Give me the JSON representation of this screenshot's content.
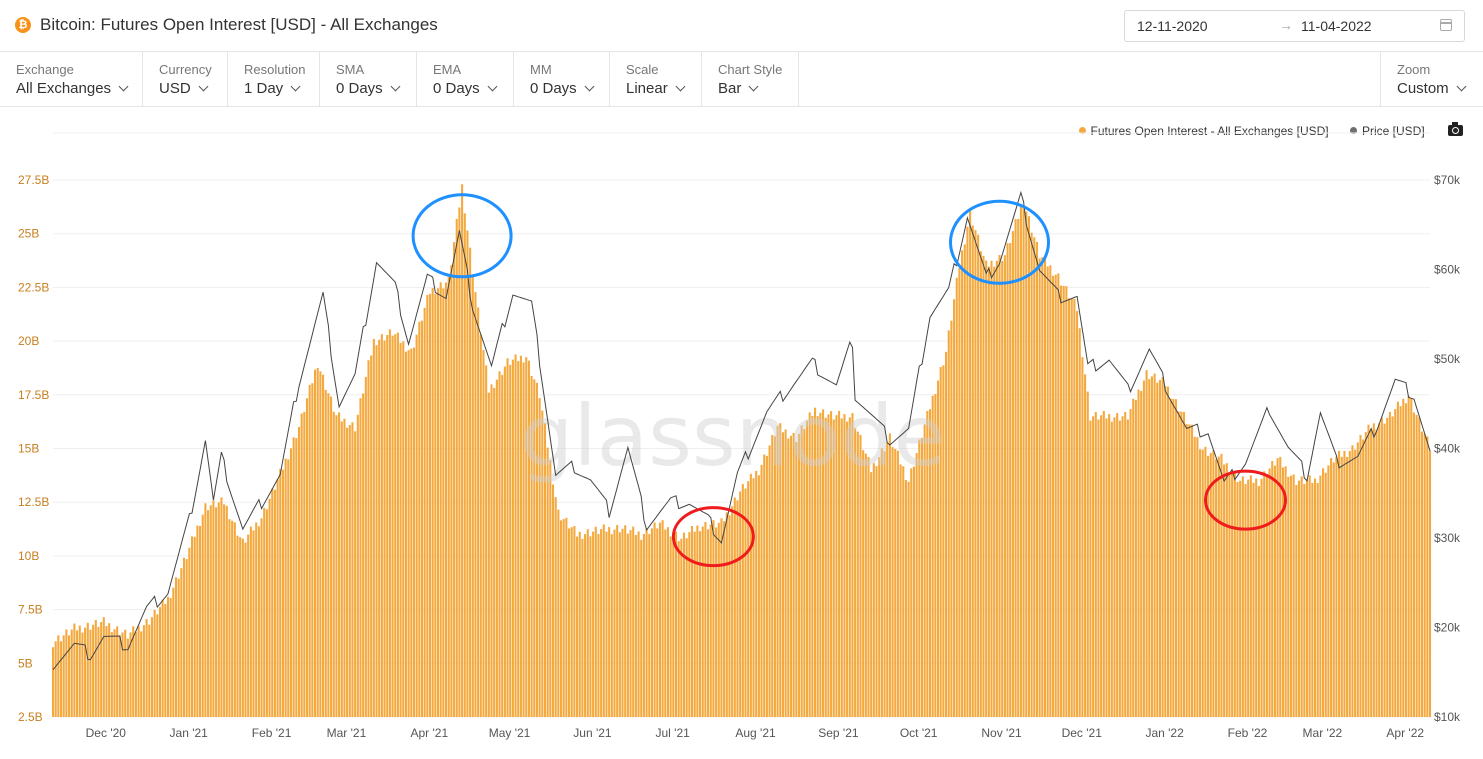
{
  "header": {
    "title": "Bitcoin: Futures Open Interest [USD] - All Exchanges",
    "coin_icon": "bitcoin-icon",
    "coin_glyph": "₿",
    "date_start": "12-11-2020",
    "date_arrow": "→",
    "date_end": "11-04-2022"
  },
  "toolbar": {
    "controls": [
      {
        "label": "Exchange",
        "value": "All Exchanges"
      },
      {
        "label": "Currency",
        "value": "USD"
      },
      {
        "label": "Resolution",
        "value": "1 Day"
      },
      {
        "label": "SMA",
        "value": "0 Days"
      },
      {
        "label": "EMA",
        "value": "0 Days"
      },
      {
        "label": "MM",
        "value": "0 Days"
      },
      {
        "label": "Scale",
        "value": "Linear"
      },
      {
        "label": "Chart Style",
        "value": "Bar"
      }
    ],
    "zoom": {
      "label": "Zoom",
      "value": "Custom"
    }
  },
  "legend": {
    "oi_label": "Futures Open Interest - All Exchanges [USD]",
    "price_label": "Price [USD]",
    "oi_color": "#f4a93f",
    "price_color": "#6f6f6f"
  },
  "watermark": "glassnode",
  "colors": {
    "bar": "#f4a93f",
    "price_line": "#444444",
    "circle_blue": "#1e90ff",
    "circle_red": "#ee1c1c"
  },
  "chart_data": {
    "type": "bar",
    "title": "Bitcoin: Futures Open Interest [USD] - All Exchanges",
    "x_start": "2020-11-12",
    "x_end": "2022-04-11",
    "x_tick_labels": [
      "Dec '20",
      "Jan '21",
      "Feb '21",
      "Mar '21",
      "Apr '21",
      "May '21",
      "Jun '21",
      "Jul '21",
      "Aug '21",
      "Sep '21",
      "Oct '21",
      "Nov '21",
      "Dec '21",
      "Jan '22",
      "Feb '22",
      "Mar '22",
      "Apr '22"
    ],
    "y_left": {
      "ticks": [
        "2.5B",
        "5B",
        "7.5B",
        "10B",
        "12.5B",
        "15B",
        "17.5B",
        "20B",
        "22.5B",
        "25B",
        "27.5B"
      ],
      "min": 2.5,
      "max": 27.5,
      "unit": "billion USD"
    },
    "y_right": {
      "ticks": [
        "$10k",
        "$20k",
        "$30k",
        "$40k",
        "$50k",
        "$60k",
        "$70k"
      ],
      "min": 10,
      "max": 70,
      "unit": "thousand USD"
    },
    "series": [
      {
        "name": "Futures Open Interest - All Exchanges [USD]",
        "axis": "left",
        "style": "bar",
        "points": [
          [
            "2020-11-12",
            6.0
          ],
          [
            "2020-11-20",
            6.6
          ],
          [
            "2020-12-01",
            6.9
          ],
          [
            "2020-12-10",
            6.3
          ],
          [
            "2020-12-18",
            7.0
          ],
          [
            "2020-12-25",
            8.0
          ],
          [
            "2021-01-01",
            10.0
          ],
          [
            "2021-01-08",
            12.3
          ],
          [
            "2021-01-15",
            12.5
          ],
          [
            "2021-01-22",
            10.6
          ],
          [
            "2021-01-29",
            11.8
          ],
          [
            "2021-02-05",
            13.8
          ],
          [
            "2021-02-12",
            16.0
          ],
          [
            "2021-02-19",
            19.0
          ],
          [
            "2021-02-26",
            16.5
          ],
          [
            "2021-03-05",
            16.0
          ],
          [
            "2021-03-12",
            20.0
          ],
          [
            "2021-03-19",
            20.4
          ],
          [
            "2021-03-26",
            19.5
          ],
          [
            "2021-04-02",
            22.3
          ],
          [
            "2021-04-09",
            22.8
          ],
          [
            "2021-04-14",
            27.2
          ],
          [
            "2021-04-18",
            23.2
          ],
          [
            "2021-04-24",
            17.7
          ],
          [
            "2021-05-01",
            19.0
          ],
          [
            "2021-05-08",
            19.3
          ],
          [
            "2021-05-13",
            17.5
          ],
          [
            "2021-05-20",
            12.0
          ],
          [
            "2021-05-27",
            11.0
          ],
          [
            "2021-06-05",
            11.2
          ],
          [
            "2021-06-12",
            11.3
          ],
          [
            "2021-06-20",
            11.0
          ],
          [
            "2021-06-27",
            11.5
          ],
          [
            "2021-07-05",
            10.8
          ],
          [
            "2021-07-12",
            11.4
          ],
          [
            "2021-07-20",
            11.5
          ],
          [
            "2021-07-27",
            13.0
          ],
          [
            "2021-08-03",
            14.0
          ],
          [
            "2021-08-10",
            16.0
          ],
          [
            "2021-08-17",
            15.5
          ],
          [
            "2021-08-24",
            16.8
          ],
          [
            "2021-08-31",
            16.5
          ],
          [
            "2021-09-07",
            16.5
          ],
          [
            "2021-09-14",
            14.0
          ],
          [
            "2021-09-21",
            15.5
          ],
          [
            "2021-09-28",
            13.5
          ],
          [
            "2021-10-05",
            16.5
          ],
          [
            "2021-10-12",
            19.5
          ],
          [
            "2021-10-17",
            23.5
          ],
          [
            "2021-10-21",
            26.0
          ],
          [
            "2021-10-27",
            23.5
          ],
          [
            "2021-11-03",
            24.0
          ],
          [
            "2021-11-10",
            26.5
          ],
          [
            "2021-11-16",
            24.0
          ],
          [
            "2021-11-23",
            23.0
          ],
          [
            "2021-11-30",
            21.5
          ],
          [
            "2021-12-05",
            16.5
          ],
          [
            "2021-12-12",
            16.5
          ],
          [
            "2021-12-19",
            16.5
          ],
          [
            "2021-12-26",
            18.5
          ],
          [
            "2022-01-02",
            18.0
          ],
          [
            "2022-01-09",
            16.5
          ],
          [
            "2022-01-16",
            15.0
          ],
          [
            "2022-01-23",
            14.5
          ],
          [
            "2022-01-30",
            13.5
          ],
          [
            "2022-02-06",
            13.5
          ],
          [
            "2022-02-13",
            14.5
          ],
          [
            "2022-02-20",
            13.5
          ],
          [
            "2022-02-27",
            13.5
          ],
          [
            "2022-03-06",
            14.5
          ],
          [
            "2022-03-13",
            15.0
          ],
          [
            "2022-03-20",
            16.0
          ],
          [
            "2022-03-27",
            16.5
          ],
          [
            "2022-04-03",
            17.5
          ],
          [
            "2022-04-11",
            15.0
          ]
        ]
      },
      {
        "name": "Price [USD]",
        "axis": "right",
        "style": "line",
        "points": [
          [
            "2020-11-12",
            16.0
          ],
          [
            "2020-11-20",
            18.0
          ],
          [
            "2020-11-26",
            17.0
          ],
          [
            "2020-12-01",
            19.0
          ],
          [
            "2020-12-10",
            18.0
          ],
          [
            "2020-12-17",
            22.0
          ],
          [
            "2020-12-25",
            24.0
          ],
          [
            "2021-01-02",
            32.0
          ],
          [
            "2021-01-08",
            41.0
          ],
          [
            "2021-01-11",
            34.0
          ],
          [
            "2021-01-14",
            39.0
          ],
          [
            "2021-01-22",
            31.0
          ],
          [
            "2021-01-29",
            34.0
          ],
          [
            "2021-02-05",
            37.0
          ],
          [
            "2021-02-12",
            47.5
          ],
          [
            "2021-02-21",
            57.0
          ],
          [
            "2021-02-27",
            45.0
          ],
          [
            "2021-03-05",
            48.0
          ],
          [
            "2021-03-13",
            61.0
          ],
          [
            "2021-03-20",
            58.0
          ],
          [
            "2021-03-25",
            52.0
          ],
          [
            "2021-04-01",
            59.0
          ],
          [
            "2021-04-08",
            57.0
          ],
          [
            "2021-04-13",
            64.0
          ],
          [
            "2021-04-18",
            56.0
          ],
          [
            "2021-04-25",
            49.0
          ],
          [
            "2021-05-03",
            57.5
          ],
          [
            "2021-05-10",
            56.0
          ],
          [
            "2021-05-13",
            50.0
          ],
          [
            "2021-05-19",
            37.0
          ],
          [
            "2021-05-26",
            38.0
          ],
          [
            "2021-06-01",
            36.5
          ],
          [
            "2021-06-08",
            33.0
          ],
          [
            "2021-06-15",
            40.0
          ],
          [
            "2021-06-22",
            31.5
          ],
          [
            "2021-07-01",
            34.0
          ],
          [
            "2021-07-08",
            34.0
          ],
          [
            "2021-07-15",
            32.0
          ],
          [
            "2021-07-20",
            29.8
          ],
          [
            "2021-07-26",
            37.0
          ],
          [
            "2021-08-06",
            44.0
          ],
          [
            "2021-08-15",
            47.0
          ],
          [
            "2021-08-23",
            49.5
          ],
          [
            "2021-09-01",
            47.0
          ],
          [
            "2021-09-07",
            52.0
          ],
          [
            "2021-09-08",
            46.0
          ],
          [
            "2021-09-21",
            41.0
          ],
          [
            "2021-09-28",
            42.0
          ],
          [
            "2021-10-06",
            55.0
          ],
          [
            "2021-10-13",
            57.5
          ],
          [
            "2021-10-20",
            66.0
          ],
          [
            "2021-10-27",
            59.0
          ],
          [
            "2021-11-01",
            61.0
          ],
          [
            "2021-11-09",
            68.0
          ],
          [
            "2021-11-16",
            60.0
          ],
          [
            "2021-11-23",
            57.0
          ],
          [
            "2021-11-30",
            57.0
          ],
          [
            "2021-12-04",
            49.0
          ],
          [
            "2021-12-12",
            50.0
          ],
          [
            "2021-12-19",
            46.5
          ],
          [
            "2021-12-27",
            51.0
          ],
          [
            "2022-01-03",
            46.5
          ],
          [
            "2022-01-10",
            42.0
          ],
          [
            "2022-01-18",
            42.0
          ],
          [
            "2022-01-24",
            36.0
          ],
          [
            "2022-02-01",
            38.5
          ],
          [
            "2022-02-10",
            44.5
          ],
          [
            "2022-02-17",
            40.0
          ],
          [
            "2022-02-24",
            37.0
          ],
          [
            "2022-03-01",
            44.0
          ],
          [
            "2022-03-07",
            38.5
          ],
          [
            "2022-03-15",
            39.0
          ],
          [
            "2022-03-22",
            42.5
          ],
          [
            "2022-03-29",
            47.5
          ],
          [
            "2022-04-05",
            46.0
          ],
          [
            "2022-04-11",
            39.5
          ]
        ]
      }
    ],
    "annotations": [
      {
        "shape": "ellipse",
        "color": "blue",
        "center": [
          "2021-04-14",
          24.9
        ],
        "axis": "left"
      },
      {
        "shape": "ellipse",
        "color": "blue",
        "center": [
          "2021-11-01",
          24.6
        ],
        "axis": "left"
      },
      {
        "shape": "ellipse",
        "color": "red",
        "center": [
          "2021-07-17",
          10.9
        ],
        "axis": "left"
      },
      {
        "shape": "ellipse",
        "color": "red",
        "center": [
          "2022-02-01",
          12.6
        ],
        "axis": "left"
      }
    ],
    "grid": true,
    "legend_position": "top-right"
  }
}
